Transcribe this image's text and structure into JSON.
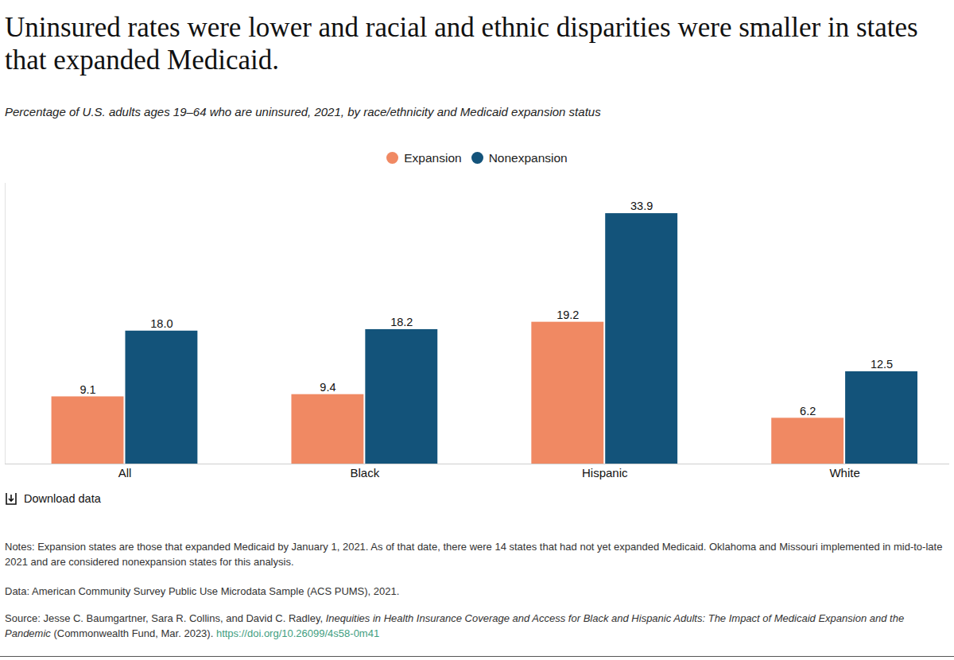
{
  "chart_data": {
    "type": "bar",
    "title": "Uninsured rates were lower and racial and ethnic disparities were smaller in states that expanded Medicaid.",
    "subtitle": "Percentage of U.S. adults ages 19–64 who are uninsured, 2021, by race/ethnicity and Medicaid expansion status",
    "categories": [
      "All",
      "Black",
      "Hispanic",
      "White"
    ],
    "series": [
      {
        "name": "Expansion",
        "color": "#f08963",
        "values": [
          9.1,
          9.4,
          19.2,
          6.2
        ],
        "value_labels": [
          "9.1",
          "9.4",
          "19.2",
          "6.2"
        ]
      },
      {
        "name": "Nonexpansion",
        "color": "#13537a",
        "values": [
          18.0,
          18.2,
          33.9,
          12.5
        ],
        "value_labels": [
          "18.0",
          "18.2",
          "33.9",
          "12.5"
        ]
      }
    ],
    "ylim": [
      0,
      38
    ],
    "yticks": [
      0
    ],
    "tick_labels": "x",
    "data_labels": true,
    "legend": "top",
    "download_label": "Download data",
    "notes": "Notes: Expansion states are those that expanded Medicaid by January 1, 2021. As of that date, there were 14 states that had not yet expanded Medicaid. Oklahoma and Missouri implemented in mid-to-late 2021 and are considered nonexpansion states for this analysis.",
    "data_note": "Data: American Community Survey Public Use Microdata Sample (ACS PUMS), 2021.",
    "source": {
      "text": "Source: Jesse C. Baumgartner, Sara R. Collins, and David C. Radley, ",
      "report": "Inequities in Health Insurance Coverage and Access for Black and Hispanic Adults: The Impact of Medicaid Expansion and the Pandemic",
      "publisher": " (Commonwealth Fund, Mar. 2023). ",
      "link": "https://doi.org/10.26099/4s58-0m41"
    }
  }
}
